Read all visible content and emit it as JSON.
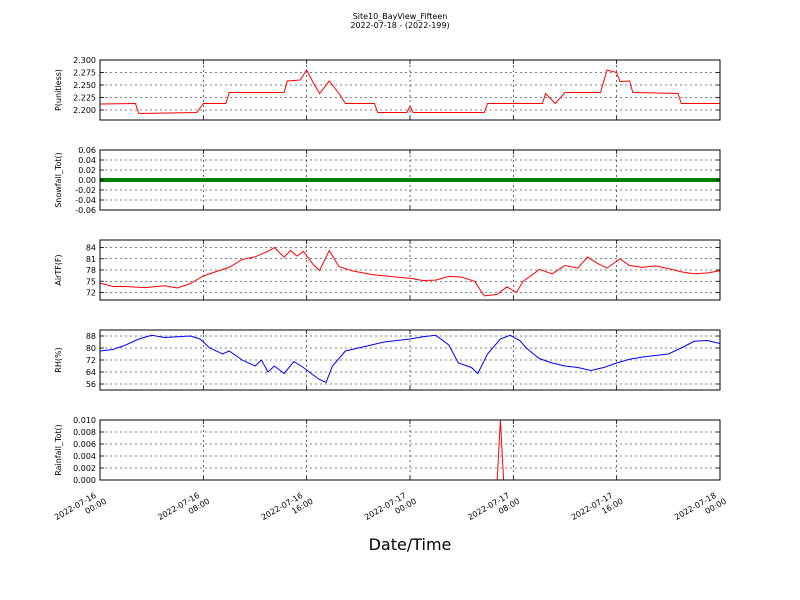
{
  "title": "Site10_BayView_Fifteen",
  "subtitle": "2022-07-18 - (2022-199)",
  "chart_data": {
    "type": "line",
    "xlabel": "Date/Time",
    "x_range": [
      "2022-07-16 00:00",
      "2022-07-18 00:00"
    ],
    "x_ticks": [
      "2022-07-16 00:00",
      "2022-07-16 08:00",
      "2022-07-16 16:00",
      "2022-07-17 00:00",
      "2022-07-17 08:00",
      "2022-07-17 16:00",
      "2022-07-18 00:00"
    ],
    "x_tick_labels": [
      [
        "2022-07-16",
        "00:00"
      ],
      [
        "2022-07-16",
        "08:00"
      ],
      [
        "2022-07-16",
        "16:00"
      ],
      [
        "2022-07-17",
        "00:00"
      ],
      [
        "2022-07-17",
        "08:00"
      ],
      [
        "2022-07-17",
        "16:00"
      ],
      [
        "2022-07-18",
        "00:00"
      ]
    ],
    "grid": true,
    "panels": [
      {
        "ylabel": "P(unitless)",
        "color": "#ff0000",
        "ylim": [
          2.18,
          2.3
        ],
        "yticks": [
          2.2,
          2.225,
          2.25,
          2.275,
          2.3
        ],
        "ytick_labels": [
          "2.200",
          "2.225",
          "2.250",
          "2.275",
          "2.300"
        ],
        "series": [
          {
            "x": "2022-07-16 00:00",
            "y": 2.212
          },
          {
            "x": "2022-07-16 02:45",
            "y": 2.213
          },
          {
            "x": "2022-07-16 03:00",
            "y": 2.193
          },
          {
            "x": "2022-07-16 07:30",
            "y": 2.195
          },
          {
            "x": "2022-07-16 08:00",
            "y": 2.213
          },
          {
            "x": "2022-07-16 09:45",
            "y": 2.213
          },
          {
            "x": "2022-07-16 10:00",
            "y": 2.235
          },
          {
            "x": "2022-07-16 14:15",
            "y": 2.235
          },
          {
            "x": "2022-07-16 14:30",
            "y": 2.258
          },
          {
            "x": "2022-07-16 15:30",
            "y": 2.26
          },
          {
            "x": "2022-07-16 16:00",
            "y": 2.28
          },
          {
            "x": "2022-07-16 16:30",
            "y": 2.255
          },
          {
            "x": "2022-07-16 17:00",
            "y": 2.233
          },
          {
            "x": "2022-07-16 17:45",
            "y": 2.258
          },
          {
            "x": "2022-07-16 18:30",
            "y": 2.233
          },
          {
            "x": "2022-07-16 19:00",
            "y": 2.213
          },
          {
            "x": "2022-07-16 21:15",
            "y": 2.213
          },
          {
            "x": "2022-07-16 21:30",
            "y": 2.195
          },
          {
            "x": "2022-07-16 23:45",
            "y": 2.195
          },
          {
            "x": "2022-07-17 00:00",
            "y": 2.207
          },
          {
            "x": "2022-07-17 00:15",
            "y": 2.195
          },
          {
            "x": "2022-07-17 05:45",
            "y": 2.195
          },
          {
            "x": "2022-07-17 06:00",
            "y": 2.213
          },
          {
            "x": "2022-07-17 10:15",
            "y": 2.213
          },
          {
            "x": "2022-07-17 10:30",
            "y": 2.233
          },
          {
            "x": "2022-07-17 11:15",
            "y": 2.213
          },
          {
            "x": "2022-07-17 12:00",
            "y": 2.235
          },
          {
            "x": "2022-07-17 14:45",
            "y": 2.235
          },
          {
            "x": "2022-07-17 15:15",
            "y": 2.28
          },
          {
            "x": "2022-07-17 16:00",
            "y": 2.275
          },
          {
            "x": "2022-07-17 16:15",
            "y": 2.257
          },
          {
            "x": "2022-07-17 17:00",
            "y": 2.258
          },
          {
            "x": "2022-07-17 17:15",
            "y": 2.235
          },
          {
            "x": "2022-07-17 20:45",
            "y": 2.233
          },
          {
            "x": "2022-07-17 21:00",
            "y": 2.213
          },
          {
            "x": "2022-07-18 00:00",
            "y": 2.213
          }
        ]
      },
      {
        "ylabel": "Snowfall_Tot()",
        "color": "#008000",
        "ylim": [
          -0.06,
          0.06
        ],
        "yticks": [
          -0.06,
          -0.04,
          -0.02,
          0.0,
          0.02,
          0.04,
          0.06
        ],
        "ytick_labels": [
          "-0.06",
          "-0.04",
          "-0.02",
          "0.00",
          "0.02",
          "0.04",
          "0.06"
        ],
        "series": [
          {
            "x": "2022-07-16 00:00",
            "y": 0.0
          },
          {
            "x": "2022-07-18 00:00",
            "y": 0.0
          }
        ]
      },
      {
        "ylabel": "AirTF(F)",
        "color": "#ff0000",
        "ylim": [
          70,
          86
        ],
        "yticks": [
          72,
          75,
          78,
          81,
          84
        ],
        "ytick_labels": [
          "72",
          "75",
          "78",
          "81",
          "84"
        ],
        "series": [
          {
            "x": "2022-07-16 00:00",
            "y": 74.5
          },
          {
            "x": "2022-07-16 01:00",
            "y": 73.6
          },
          {
            "x": "2022-07-16 02:00",
            "y": 73.6
          },
          {
            "x": "2022-07-16 03:30",
            "y": 73.3
          },
          {
            "x": "2022-07-16 05:00",
            "y": 73.8
          },
          {
            "x": "2022-07-16 06:00",
            "y": 73.2
          },
          {
            "x": "2022-07-16 07:00",
            "y": 74.4
          },
          {
            "x": "2022-07-16 08:00",
            "y": 76.4
          },
          {
            "x": "2022-07-16 09:00",
            "y": 77.6
          },
          {
            "x": "2022-07-16 10:00",
            "y": 78.7
          },
          {
            "x": "2022-07-16 11:00",
            "y": 80.8
          },
          {
            "x": "2022-07-16 12:00",
            "y": 81.5
          },
          {
            "x": "2022-07-16 13:00",
            "y": 83.0
          },
          {
            "x": "2022-07-16 13:30",
            "y": 84.0
          },
          {
            "x": "2022-07-16 14:15",
            "y": 81.4
          },
          {
            "x": "2022-07-16 14:45",
            "y": 83.2
          },
          {
            "x": "2022-07-16 15:15",
            "y": 81.7
          },
          {
            "x": "2022-07-16 15:45",
            "y": 83.0
          },
          {
            "x": "2022-07-16 16:30",
            "y": 79.5
          },
          {
            "x": "2022-07-16 17:00",
            "y": 77.9
          },
          {
            "x": "2022-07-16 17:45",
            "y": 83.2
          },
          {
            "x": "2022-07-16 18:30",
            "y": 78.9
          },
          {
            "x": "2022-07-16 19:30",
            "y": 77.8
          },
          {
            "x": "2022-07-16 21:00",
            "y": 76.8
          },
          {
            "x": "2022-07-16 23:00",
            "y": 76.1
          },
          {
            "x": "2022-07-17 00:00",
            "y": 75.8
          },
          {
            "x": "2022-07-17 01:00",
            "y": 75.2
          },
          {
            "x": "2022-07-17 02:00",
            "y": 75.3
          },
          {
            "x": "2022-07-17 03:00",
            "y": 76.3
          },
          {
            "x": "2022-07-17 04:00",
            "y": 76.1
          },
          {
            "x": "2022-07-17 05:00",
            "y": 75.0
          },
          {
            "x": "2022-07-17 05:45",
            "y": 71.1
          },
          {
            "x": "2022-07-17 06:45",
            "y": 71.5
          },
          {
            "x": "2022-07-17 07:30",
            "y": 73.5
          },
          {
            "x": "2022-07-17 08:15",
            "y": 72.0
          },
          {
            "x": "2022-07-17 08:45",
            "y": 75.0
          },
          {
            "x": "2022-07-17 09:30",
            "y": 76.8
          },
          {
            "x": "2022-07-17 10:00",
            "y": 78.2
          },
          {
            "x": "2022-07-17 11:00",
            "y": 77.0
          },
          {
            "x": "2022-07-17 12:00",
            "y": 79.2
          },
          {
            "x": "2022-07-17 13:00",
            "y": 78.5
          },
          {
            "x": "2022-07-17 13:45",
            "y": 81.5
          },
          {
            "x": "2022-07-17 14:30",
            "y": 79.8
          },
          {
            "x": "2022-07-17 15:15",
            "y": 78.5
          },
          {
            "x": "2022-07-17 16:15",
            "y": 81.0
          },
          {
            "x": "2022-07-17 17:00",
            "y": 79.2
          },
          {
            "x": "2022-07-17 18:00",
            "y": 78.7
          },
          {
            "x": "2022-07-17 19:00",
            "y": 79.1
          },
          {
            "x": "2022-07-17 20:00",
            "y": 78.4
          },
          {
            "x": "2022-07-17 21:00",
            "y": 77.5
          },
          {
            "x": "2022-07-17 22:00",
            "y": 77.0
          },
          {
            "x": "2022-07-17 23:00",
            "y": 77.2
          },
          {
            "x": "2022-07-18 00:00",
            "y": 77.8
          }
        ]
      },
      {
        "ylabel": "RH(%)",
        "color": "#0000ff",
        "ylim": [
          52,
          92
        ],
        "yticks": [
          56,
          64,
          72,
          80,
          88
        ],
        "ytick_labels": [
          "56",
          "64",
          "72",
          "80",
          "88"
        ],
        "series": [
          {
            "x": "2022-07-16 00:00",
            "y": 78.0
          },
          {
            "x": "2022-07-16 01:00",
            "y": 79.0
          },
          {
            "x": "2022-07-16 02:00",
            "y": 82.0
          },
          {
            "x": "2022-07-16 03:00",
            "y": 86.0
          },
          {
            "x": "2022-07-16 04:00",
            "y": 88.5
          },
          {
            "x": "2022-07-16 05:00",
            "y": 87.0
          },
          {
            "x": "2022-07-16 06:00",
            "y": 87.5
          },
          {
            "x": "2022-07-16 07:00",
            "y": 88.0
          },
          {
            "x": "2022-07-16 07:45",
            "y": 86.0
          },
          {
            "x": "2022-07-16 08:30",
            "y": 80.0
          },
          {
            "x": "2022-07-16 09:30",
            "y": 76.0
          },
          {
            "x": "2022-07-16 10:00",
            "y": 78.0
          },
          {
            "x": "2022-07-16 11:00",
            "y": 72.0
          },
          {
            "x": "2022-07-16 12:00",
            "y": 68.0
          },
          {
            "x": "2022-07-16 12:30",
            "y": 72.0
          },
          {
            "x": "2022-07-16 13:00",
            "y": 64.0
          },
          {
            "x": "2022-07-16 13:30",
            "y": 68.0
          },
          {
            "x": "2022-07-16 14:15",
            "y": 63.0
          },
          {
            "x": "2022-07-16 15:00",
            "y": 71.0
          },
          {
            "x": "2022-07-16 15:45",
            "y": 67.0
          },
          {
            "x": "2022-07-16 16:30",
            "y": 62.0
          },
          {
            "x": "2022-07-16 17:00",
            "y": 59.0
          },
          {
            "x": "2022-07-16 17:30",
            "y": 57.0
          },
          {
            "x": "2022-07-16 18:00",
            "y": 68.0
          },
          {
            "x": "2022-07-16 19:00",
            "y": 78.0
          },
          {
            "x": "2022-07-16 20:00",
            "y": 80.0
          },
          {
            "x": "2022-07-16 21:00",
            "y": 82.0
          },
          {
            "x": "2022-07-16 22:00",
            "y": 84.0
          },
          {
            "x": "2022-07-16 23:00",
            "y": 85.0
          },
          {
            "x": "2022-07-17 00:00",
            "y": 86.0
          },
          {
            "x": "2022-07-17 01:00",
            "y": 87.5
          },
          {
            "x": "2022-07-17 02:00",
            "y": 88.5
          },
          {
            "x": "2022-07-17 03:00",
            "y": 82.0
          },
          {
            "x": "2022-07-17 03:45",
            "y": 70.0
          },
          {
            "x": "2022-07-17 04:45",
            "y": 67.0
          },
          {
            "x": "2022-07-17 05:15",
            "y": 63.0
          },
          {
            "x": "2022-07-17 06:00",
            "y": 76.0
          },
          {
            "x": "2022-07-17 07:00",
            "y": 86.0
          },
          {
            "x": "2022-07-17 07:45",
            "y": 88.5
          },
          {
            "x": "2022-07-17 08:30",
            "y": 85.0
          },
          {
            "x": "2022-07-17 09:00",
            "y": 80.0
          },
          {
            "x": "2022-07-17 10:00",
            "y": 73.0
          },
          {
            "x": "2022-07-17 11:00",
            "y": 70.0
          },
          {
            "x": "2022-07-17 12:00",
            "y": 68.0
          },
          {
            "x": "2022-07-17 13:00",
            "y": 67.0
          },
          {
            "x": "2022-07-17 14:00",
            "y": 65.0
          },
          {
            "x": "2022-07-17 15:00",
            "y": 67.0
          },
          {
            "x": "2022-07-17 16:00",
            "y": 70.0
          },
          {
            "x": "2022-07-17 17:00",
            "y": 72.5
          },
          {
            "x": "2022-07-17 18:00",
            "y": 74.0
          },
          {
            "x": "2022-07-17 19:00",
            "y": 75.0
          },
          {
            "x": "2022-07-17 20:00",
            "y": 76.0
          },
          {
            "x": "2022-07-17 21:00",
            "y": 80.0
          },
          {
            "x": "2022-07-17 22:00",
            "y": 84.5
          },
          {
            "x": "2022-07-17 23:00",
            "y": 85.0
          },
          {
            "x": "2022-07-18 00:00",
            "y": 83.0
          }
        ]
      },
      {
        "ylabel": "Rainfall_Tot()",
        "color": "#ff0000",
        "ylim": [
          0,
          0.01
        ],
        "yticks": [
          0.0,
          0.002,
          0.004,
          0.006,
          0.008,
          0.01
        ],
        "ytick_labels": [
          "0.000",
          "0.002",
          "0.004",
          "0.006",
          "0.008",
          "0.010"
        ],
        "series": [
          {
            "x": "2022-07-16 00:00",
            "y": 0.0
          },
          {
            "x": "2022-07-17 06:45",
            "y": 0.0
          },
          {
            "x": "2022-07-17 07:00",
            "y": 0.01
          },
          {
            "x": "2022-07-17 07:15",
            "y": 0.0
          },
          {
            "x": "2022-07-18 00:00",
            "y": 0.0
          }
        ]
      }
    ]
  }
}
